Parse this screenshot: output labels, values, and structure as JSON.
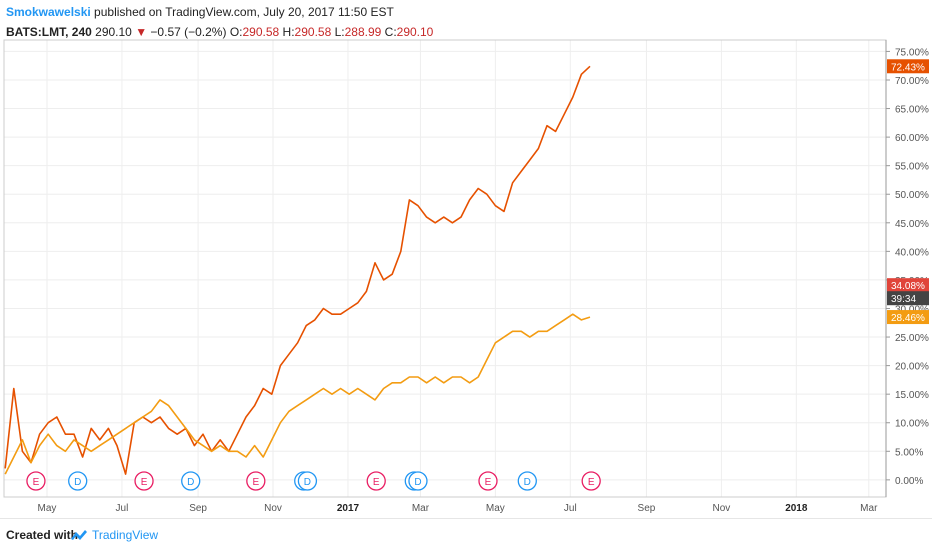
{
  "header": {
    "author": "Smokwawelski",
    "published": " published on TradingView.com, July 20, 2017 11:50 EST",
    "symbol": "BATS:LMT, 240",
    "last": "290.10",
    "change_arrow": "▼",
    "change": "−0.57 (−0.2%)",
    "o_label": "O:",
    "o_value": "290.58",
    "h_label": "H:",
    "h_value": "290.58",
    "l_label": "L:",
    "l_value": "288.99",
    "c_label": "C:",
    "c_value": "290.10"
  },
  "footer": {
    "created": "Created with",
    "brand": "TradingView"
  },
  "price_tags": [
    {
      "label": "72.43%",
      "color": "#e65100"
    },
    {
      "label": "34.08%",
      "color": "#e0443a"
    },
    {
      "label": "39:34",
      "color": "#444444"
    },
    {
      "label": "28.46%",
      "color": "#f39c12"
    }
  ],
  "chart_data": {
    "type": "line",
    "y_unit": "percent",
    "ylim": [
      -3,
      77
    ],
    "y_ticks": [
      "0.00%",
      "5.00%",
      "10.00%",
      "15.00%",
      "20.00%",
      "25.00%",
      "30.00%",
      "35.00%",
      "40.00%",
      "45.00%",
      "50.00%",
      "55.00%",
      "60.00%",
      "65.00%",
      "70.00%",
      "75.00%"
    ],
    "x_tick_labels": [
      "May",
      "Jul",
      "Sep",
      "Nov",
      "2017",
      "Mar",
      "May",
      "Jul",
      "Sep",
      "Nov",
      "2018",
      "Mar"
    ],
    "x_tick_dates": [
      "2016-05-01",
      "2016-07-01",
      "2016-09-01",
      "2016-11-01",
      "2017-01-01",
      "2017-03-01",
      "2017-05-01",
      "2017-07-01",
      "2017-09-01",
      "2017-11-01",
      "2018-01-01",
      "2018-03-01"
    ],
    "xlim": [
      "2016-03-27",
      "2018-03-15"
    ],
    "series": [
      {
        "color": "#e65100",
        "points": [
          [
            "2016-03-28",
            2
          ],
          [
            "2016-04-04",
            16
          ],
          [
            "2016-04-11",
            5
          ],
          [
            "2016-04-18",
            3
          ],
          [
            "2016-04-25",
            8
          ],
          [
            "2016-05-02",
            10
          ],
          [
            "2016-05-09",
            11
          ],
          [
            "2016-05-16",
            8
          ],
          [
            "2016-05-23",
            8
          ],
          [
            "2016-05-30",
            4
          ],
          [
            "2016-06-06",
            9
          ],
          [
            "2016-06-13",
            7
          ],
          [
            "2016-06-20",
            9
          ],
          [
            "2016-06-27",
            6
          ],
          [
            "2016-07-04",
            1
          ],
          [
            "2016-07-11",
            10
          ],
          [
            "2016-07-18",
            11
          ],
          [
            "2016-07-25",
            10
          ],
          [
            "2016-08-01",
            11
          ],
          [
            "2016-08-08",
            9
          ],
          [
            "2016-08-15",
            8
          ],
          [
            "2016-08-22",
            9
          ],
          [
            "2016-08-29",
            6
          ],
          [
            "2016-09-05",
            8
          ],
          [
            "2016-09-12",
            5
          ],
          [
            "2016-09-19",
            7
          ],
          [
            "2016-09-26",
            5
          ],
          [
            "2016-10-03",
            8
          ],
          [
            "2016-10-10",
            11
          ],
          [
            "2016-10-17",
            13
          ],
          [
            "2016-10-24",
            16
          ],
          [
            "2016-10-31",
            15
          ],
          [
            "2016-11-07",
            20
          ],
          [
            "2016-11-14",
            22
          ],
          [
            "2016-11-21",
            24
          ],
          [
            "2016-11-28",
            27
          ],
          [
            "2016-12-05",
            28
          ],
          [
            "2016-12-12",
            30
          ],
          [
            "2016-12-19",
            29
          ],
          [
            "2016-12-26",
            29
          ],
          [
            "2017-01-02",
            30
          ],
          [
            "2017-01-09",
            31
          ],
          [
            "2017-01-16",
            33
          ],
          [
            "2017-01-23",
            38
          ],
          [
            "2017-01-30",
            35
          ],
          [
            "2017-02-06",
            36
          ],
          [
            "2017-02-13",
            40
          ],
          [
            "2017-02-20",
            49
          ],
          [
            "2017-02-27",
            48
          ],
          [
            "2017-03-06",
            46
          ],
          [
            "2017-03-13",
            45
          ],
          [
            "2017-03-20",
            46
          ],
          [
            "2017-03-27",
            45
          ],
          [
            "2017-04-03",
            46
          ],
          [
            "2017-04-10",
            49
          ],
          [
            "2017-04-17",
            51
          ],
          [
            "2017-04-24",
            50
          ],
          [
            "2017-05-01",
            48
          ],
          [
            "2017-05-08",
            47
          ],
          [
            "2017-05-15",
            52
          ],
          [
            "2017-05-22",
            54
          ],
          [
            "2017-05-29",
            56
          ],
          [
            "2017-06-05",
            58
          ],
          [
            "2017-06-12",
            62
          ],
          [
            "2017-06-19",
            61
          ],
          [
            "2017-06-26",
            64
          ],
          [
            "2017-07-03",
            67
          ],
          [
            "2017-07-10",
            71
          ],
          [
            "2017-07-17",
            72.4
          ]
        ]
      },
      {
        "color": "#f39c12",
        "points": [
          [
            "2016-03-28",
            1
          ],
          [
            "2016-04-04",
            4
          ],
          [
            "2016-04-11",
            7
          ],
          [
            "2016-04-18",
            3
          ],
          [
            "2016-04-25",
            6
          ],
          [
            "2016-05-02",
            8
          ],
          [
            "2016-05-09",
            6
          ],
          [
            "2016-05-16",
            5
          ],
          [
            "2016-05-23",
            7
          ],
          [
            "2016-05-30",
            6
          ],
          [
            "2016-06-06",
            5
          ],
          [
            "2016-06-13",
            6
          ],
          [
            "2016-06-20",
            7
          ],
          [
            "2016-06-27",
            8
          ],
          [
            "2016-07-04",
            9
          ],
          [
            "2016-07-11",
            10
          ],
          [
            "2016-07-18",
            11
          ],
          [
            "2016-07-25",
            12
          ],
          [
            "2016-08-01",
            14
          ],
          [
            "2016-08-08",
            13
          ],
          [
            "2016-08-15",
            11
          ],
          [
            "2016-08-22",
            9
          ],
          [
            "2016-08-29",
            7
          ],
          [
            "2016-09-05",
            6
          ],
          [
            "2016-09-12",
            5
          ],
          [
            "2016-09-19",
            6
          ],
          [
            "2016-09-26",
            5
          ],
          [
            "2016-10-03",
            5
          ],
          [
            "2016-10-10",
            4
          ],
          [
            "2016-10-17",
            6
          ],
          [
            "2016-10-24",
            4
          ],
          [
            "2016-10-31",
            7
          ],
          [
            "2016-11-07",
            10
          ],
          [
            "2016-11-14",
            12
          ],
          [
            "2016-11-21",
            13
          ],
          [
            "2016-11-28",
            14
          ],
          [
            "2016-12-05",
            15
          ],
          [
            "2016-12-12",
            16
          ],
          [
            "2016-12-19",
            15
          ],
          [
            "2016-12-26",
            16
          ],
          [
            "2017-01-02",
            15
          ],
          [
            "2017-01-09",
            16
          ],
          [
            "2017-01-16",
            15
          ],
          [
            "2017-01-23",
            14
          ],
          [
            "2017-01-30",
            16
          ],
          [
            "2017-02-06",
            17
          ],
          [
            "2017-02-13",
            17
          ],
          [
            "2017-02-20",
            18
          ],
          [
            "2017-02-27",
            18
          ],
          [
            "2017-03-06",
            17
          ],
          [
            "2017-03-13",
            18
          ],
          [
            "2017-03-20",
            17
          ],
          [
            "2017-03-27",
            18
          ],
          [
            "2017-04-03",
            18
          ],
          [
            "2017-04-10",
            17
          ],
          [
            "2017-04-17",
            18
          ],
          [
            "2017-04-24",
            21
          ],
          [
            "2017-05-01",
            24
          ],
          [
            "2017-05-08",
            25
          ],
          [
            "2017-05-15",
            26
          ],
          [
            "2017-05-22",
            26
          ],
          [
            "2017-05-29",
            25
          ],
          [
            "2017-06-05",
            26
          ],
          [
            "2017-06-12",
            26
          ],
          [
            "2017-06-19",
            27
          ],
          [
            "2017-06-26",
            28
          ],
          [
            "2017-07-03",
            29
          ],
          [
            "2017-07-10",
            28
          ],
          [
            "2017-07-17",
            28.5
          ]
        ]
      }
    ],
    "events": [
      {
        "date": "2016-04-22",
        "letter": "E",
        "color": "#e91e63"
      },
      {
        "date": "2016-05-26",
        "letter": "D",
        "color": "#2196f3"
      },
      {
        "date": "2016-07-19",
        "letter": "E",
        "color": "#e91e63"
      },
      {
        "date": "2016-08-26",
        "letter": "D",
        "color": "#2196f3"
      },
      {
        "date": "2016-10-18",
        "letter": "E",
        "color": "#e91e63"
      },
      {
        "date": "2016-11-26",
        "letter": "D",
        "color": "#2196f3"
      },
      {
        "date": "2016-11-29",
        "letter": "D",
        "color": "#2196f3"
      },
      {
        "date": "2017-01-24",
        "letter": "E",
        "color": "#e91e63"
      },
      {
        "date": "2017-02-24",
        "letter": "D",
        "color": "#2196f3"
      },
      {
        "date": "2017-02-27",
        "letter": "D",
        "color": "#2196f3"
      },
      {
        "date": "2017-04-25",
        "letter": "E",
        "color": "#e91e63"
      },
      {
        "date": "2017-05-27",
        "letter": "D",
        "color": "#2196f3"
      },
      {
        "date": "2017-07-18",
        "letter": "E",
        "color": "#e91e63"
      }
    ],
    "grid": true,
    "legend": "none"
  }
}
